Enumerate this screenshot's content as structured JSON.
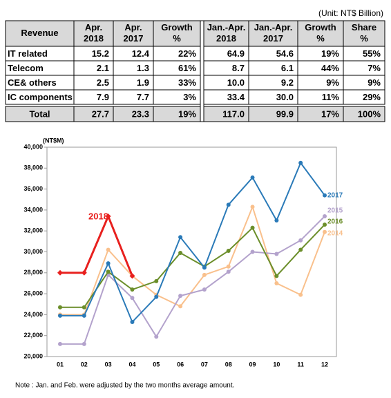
{
  "unit": "(Unit: NT$ Billion)",
  "table": {
    "header": [
      [
        "Revenue"
      ],
      [
        "Apr.",
        "2018"
      ],
      [
        "Apr.",
        "2017"
      ],
      [
        "Growth",
        "%"
      ],
      [
        "Jan.-Apr.",
        "2018"
      ],
      [
        "Jan.-Apr.",
        "2017"
      ],
      [
        "Growth",
        "%"
      ],
      [
        "Share",
        "%"
      ]
    ],
    "rows": [
      [
        "IT related",
        "15.2",
        "12.4",
        "22%",
        "64.9",
        "54.6",
        "19%",
        "55%"
      ],
      [
        "Telecom",
        "2.1",
        "1.3",
        "61%",
        "8.7",
        "6.1",
        "44%",
        "7%"
      ],
      [
        "CE& others",
        "2.5",
        "1.9",
        "33%",
        "10.0",
        "9.2",
        "9%",
        "9%"
      ],
      [
        "IC components",
        "7.9",
        "7.7",
        "3%",
        "33.4",
        "30.0",
        "11%",
        "29%"
      ]
    ],
    "total": [
      "Total",
      "27.7",
      "23.3",
      "19%",
      "117.0",
      "99.9",
      "17%",
      "100%"
    ]
  },
  "chart_data": {
    "type": "line",
    "y_label": "(NT$M)",
    "categories": [
      "01",
      "02",
      "03",
      "04",
      "05",
      "06",
      "07",
      "08",
      "09",
      "10",
      "11",
      "12"
    ],
    "ylim": [
      20000,
      40000
    ],
    "yticks": [
      {
        "value": 20000,
        "label": "20,000"
      },
      {
        "value": 22000,
        "label": "22,000"
      },
      {
        "value": 24000,
        "label": "24,000"
      },
      {
        "value": 26000,
        "label": "26,000"
      },
      {
        "value": 28000,
        "label": "28,000"
      },
      {
        "value": 30000,
        "label": "30,000"
      },
      {
        "value": 32000,
        "label": "32,000"
      },
      {
        "value": 34000,
        "label": "34,000"
      },
      {
        "value": 36000,
        "label": "36,000"
      },
      {
        "value": 38000,
        "label": "38,000"
      },
      {
        "value": 40000,
        "label": "40,000"
      }
    ],
    "series": [
      {
        "name": "2018",
        "color": "#e8201e",
        "values": [
          28000,
          28000,
          33400,
          27700,
          null,
          null,
          null,
          null,
          null,
          null,
          null,
          null
        ]
      },
      {
        "name": "2017",
        "color": "#2a7ab8",
        "values": [
          23900,
          23900,
          28900,
          23300,
          25700,
          31400,
          28500,
          34500,
          37100,
          33000,
          38500,
          35400
        ]
      },
      {
        "name": "2016",
        "color": "#6b8e2a",
        "values": [
          24700,
          24700,
          28100,
          26400,
          27200,
          29900,
          28600,
          30100,
          32300,
          27700,
          30200,
          32600
        ]
      },
      {
        "name": "2015",
        "color": "#b3a2cc",
        "values": [
          21200,
          21200,
          27800,
          25600,
          21900,
          25800,
          26400,
          28100,
          30000,
          29800,
          31100,
          33400
        ]
      },
      {
        "name": "2014",
        "color": "#f9c08c",
        "values": [
          24000,
          24000,
          30200,
          27700,
          25900,
          24800,
          27800,
          28600,
          34300,
          27000,
          25900,
          31900
        ]
      }
    ],
    "note": "Note : Jan. and Feb. were adjusted by the two months average amount."
  }
}
